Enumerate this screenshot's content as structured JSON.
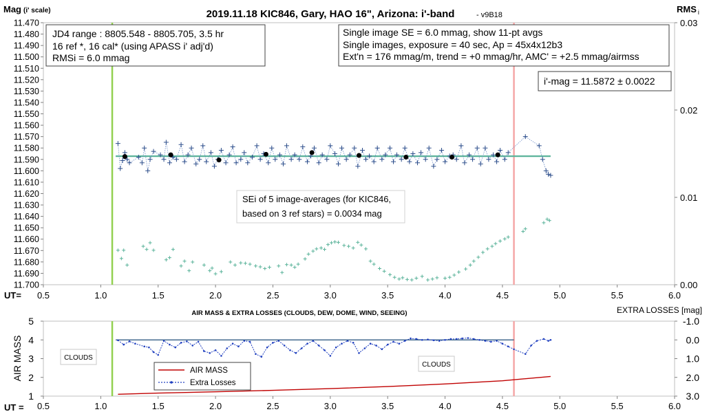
{
  "chart_data": [
    {
      "type": "scatter",
      "title": "2019.11.18 KIC846, Gary, HAO 16\", Arizona: i'-band",
      "version": "- v9B18",
      "ylabel": "Mag",
      "ylabel_scale": "(i' scale)",
      "y2label": "RMS",
      "y2label_sub": "i",
      "xlabel": "UT=",
      "xlim": [
        0.5,
        6.0
      ],
      "ylim": [
        11.47,
        11.7
      ],
      "y_inverted": true,
      "y2lim": [
        0.0,
        0.03
      ],
      "x_ticks": [
        "0.5",
        "1.0",
        "1.5",
        "2.0",
        "2.5",
        "3.0",
        "3.5",
        "4.0",
        "4.5",
        "5.0",
        "5.5",
        "6.0"
      ],
      "y_ticks": [
        "11.470",
        "11.480",
        "11.490",
        "11.500",
        "11.510",
        "11.520",
        "11.530",
        "11.540",
        "11.550",
        "11.560",
        "11.570",
        "11.580",
        "11.590",
        "11.600",
        "11.610",
        "11.620",
        "11.630",
        "11.640",
        "11.650",
        "11.660",
        "11.670",
        "11.680",
        "11.690",
        "11.700"
      ],
      "y2_ticks": [
        "0.03",
        "0.02",
        "0.01",
        "0.00"
      ],
      "vlines": [
        {
          "x": 1.1,
          "color": "#92d050"
        },
        {
          "x": 4.6,
          "color": "#f4a6a6"
        }
      ],
      "hline": {
        "y": 11.5872,
        "x_from": 1.13,
        "x_to": 4.92,
        "color": "#5ab39a"
      },
      "series": [
        {
          "name": "",
          "kind": "single-images",
          "color": "#2c4d8a",
          "x": [
            1.15,
            1.17,
            1.19,
            1.21,
            1.23,
            1.25,
            1.33,
            1.36,
            1.38,
            1.41,
            1.43,
            1.46,
            1.52,
            1.55,
            1.57,
            1.6,
            1.63,
            1.66,
            1.7,
            1.73,
            1.76,
            1.79,
            1.83,
            1.86,
            1.89,
            1.92,
            1.96,
            1.99,
            2.02,
            2.05,
            2.09,
            2.12,
            2.15,
            2.18,
            2.22,
            2.25,
            2.28,
            2.32,
            2.36,
            2.39,
            2.42,
            2.46,
            2.49,
            2.52,
            2.56,
            2.59,
            2.62,
            2.66,
            2.69,
            2.73,
            2.76,
            2.8,
            2.83,
            2.86,
            2.9,
            2.93,
            2.97,
            3.0,
            3.04,
            3.07,
            3.1,
            3.14,
            3.17,
            3.21,
            3.24,
            3.28,
            3.31,
            3.34,
            3.38,
            3.41,
            3.45,
            3.48,
            3.52,
            3.55,
            3.58,
            3.62,
            3.65,
            3.69,
            3.72,
            3.76,
            3.79,
            3.83,
            3.86,
            3.9,
            3.93,
            3.97,
            4.0,
            4.04,
            4.07,
            4.1,
            4.14,
            4.17,
            4.21,
            4.24,
            4.28,
            4.31,
            4.35,
            4.38,
            4.42,
            4.45,
            4.48,
            4.52,
            4.55,
            4.7,
            4.82,
            4.85,
            4.88,
            4.9,
            4.92
          ],
          "y": [
            11.576,
            11.598,
            11.591,
            11.584,
            11.59,
            11.593,
            11.588,
            11.593,
            11.58,
            11.6,
            11.59,
            11.583,
            11.586,
            11.59,
            11.575,
            11.593,
            11.588,
            11.59,
            11.577,
            11.592,
            11.586,
            11.58,
            11.594,
            11.59,
            11.578,
            11.592,
            11.584,
            11.596,
            11.59,
            11.582,
            11.593,
            11.586,
            11.579,
            11.593,
            11.59,
            11.584,
            11.593,
            11.588,
            11.578,
            11.59,
            11.585,
            11.593,
            11.58,
            11.59,
            11.586,
            11.594,
            11.578,
            11.59,
            11.586,
            11.59,
            11.579,
            11.592,
            11.587,
            11.58,
            11.593,
            11.586,
            11.59,
            11.578,
            11.585,
            11.594,
            11.58,
            11.59,
            11.586,
            11.58,
            11.596,
            11.582,
            11.59,
            11.587,
            11.592,
            11.58,
            11.59,
            11.586,
            11.58,
            11.592,
            11.586,
            11.59,
            11.58,
            11.592,
            11.585,
            11.593,
            11.584,
            11.59,
            11.58,
            11.596,
            11.59,
            11.582,
            11.592,
            11.587,
            11.586,
            11.59,
            11.578,
            11.593,
            11.586,
            11.59,
            11.58,
            11.594,
            11.58,
            11.59,
            11.586,
            11.592,
            11.582,
            11.59,
            11.584,
            11.57,
            11.578,
            11.59,
            11.6,
            11.603,
            11.604
          ]
        },
        {
          "name": "",
          "kind": "11-pt-averages",
          "color": "#000000",
          "x": [
            1.21,
            1.61,
            2.03,
            2.44,
            2.84,
            3.25,
            3.66,
            4.06,
            4.46
          ],
          "y": [
            11.5875,
            11.586,
            11.5905,
            11.5855,
            11.584,
            11.5865,
            11.588,
            11.588,
            11.586
          ]
        },
        {
          "name": "",
          "kind": "rms",
          "color": "#5ab39a",
          "axis": "y2",
          "x": [
            1.15,
            1.18,
            1.2,
            1.23,
            1.37,
            1.4,
            1.43,
            1.46,
            1.57,
            1.6,
            1.63,
            1.7,
            1.73,
            1.77,
            1.8,
            1.9,
            1.95,
            1.97,
            2.0,
            2.05,
            2.13,
            2.17,
            2.22,
            2.26,
            2.3,
            2.35,
            2.39,
            2.43,
            2.47,
            2.55,
            2.58,
            2.62,
            2.66,
            2.69,
            2.72,
            2.78,
            2.81,
            2.85,
            2.88,
            2.92,
            2.95,
            2.98,
            3.01,
            3.04,
            3.07,
            3.12,
            3.16,
            3.2,
            3.24,
            3.27,
            3.31,
            3.35,
            3.38,
            3.43,
            3.47,
            3.52,
            3.56,
            3.6,
            3.63,
            3.67,
            3.71,
            3.75,
            3.8,
            3.85,
            3.89,
            3.93,
            4.0,
            4.04,
            4.08,
            4.12,
            4.18,
            4.22,
            4.25,
            4.29,
            4.33,
            4.37,
            4.41,
            4.44,
            4.48,
            4.52,
            4.55,
            4.68,
            4.7,
            4.86,
            4.89,
            4.91
          ],
          "y": [
            0.00395,
            0.003,
            0.00395,
            0.00225,
            0.0044,
            0.00405,
            0.0048,
            0.00395,
            0.00285,
            0.0031,
            0.00405,
            0.00215,
            0.0027,
            0.0016,
            0.0026,
            0.00225,
            0.0016,
            0.0019,
            0.00125,
            0.0015,
            0.0026,
            0.00225,
            0.0025,
            0.00245,
            0.00235,
            0.00215,
            0.00205,
            0.00185,
            0.002,
            0.00215,
            0.0014,
            0.0023,
            0.00225,
            0.002,
            0.00235,
            0.00295,
            0.0035,
            0.00385,
            0.0041,
            0.0042,
            0.00405,
            0.0046,
            0.0048,
            0.0049,
            0.00485,
            0.0045,
            0.0044,
            0.0042,
            0.00485,
            0.00455,
            0.0041,
            0.0027,
            0.00235,
            0.00185,
            0.00155,
            0.00115,
            0.00085,
            0.00065,
            0.0008,
            0.0006,
            0.00055,
            0.00075,
            0.00095,
            0.00055,
            0.00065,
            0.0008,
            0.00075,
            0.00085,
            0.0011,
            0.00145,
            0.0018,
            0.00225,
            0.0027,
            0.00315,
            0.0037,
            0.0041,
            0.0044,
            0.0047,
            0.005,
            0.00525,
            0.00545,
            0.0061,
            0.0064,
            0.0071,
            0.0075,
            0.00735
          ]
        }
      ],
      "annotations": {
        "top_left": [
          "JD4 range : 8805.548 - 8805.705, 3.5  hr",
          "16 ref *, 16 cal* (using APASS i' adj'd)",
          "RMSi = 6.0 mmag"
        ],
        "top_right": [
          "Single image SE = 6.0 mmag, show 11-pt avgs",
          "Single images, exposure = 40 sec, Ap = 45x4x12b3",
          "Ext'n = 176 mmag/m, trend = +0 mmag/hr, AMC' = +2.5 mmag/airmss"
        ],
        "imag": "i'-mag = 11.5872 ± 0.0022",
        "sei": [
          "SEi of 5 image-averages (for KIC846,",
          "based on 3 ref stars) = 0.0034 mag"
        ]
      }
    },
    {
      "type": "line",
      "title": "AIR MASS & EXTRA LOSSES (CLOUDS, DEW, DOME, WIND, SEEING)",
      "ylabel": "AIR MASS",
      "y2label": "EXTRA LOSSES [mag]",
      "xlabel": "UT =",
      "xlim": [
        0.5,
        6.0
      ],
      "ylim": [
        1,
        5
      ],
      "y2lim": [
        -1.0,
        3.0
      ],
      "y2_inverted": true,
      "x_ticks": [
        "0.5",
        "1.0",
        "1.5",
        "2.0",
        "2.5",
        "3.0",
        "3.5",
        "4.0",
        "4.5",
        "5.0",
        "5.5",
        "6.0"
      ],
      "y_ticks": [
        "5",
        "4",
        "3",
        "2",
        "1"
      ],
      "y2_ticks": [
        "-1.0",
        "0.0",
        "1.0",
        "2.0",
        "3.0"
      ],
      "vlines": [
        {
          "x": 1.1,
          "color": "#92d050"
        },
        {
          "x": 4.6,
          "color": "#f4a6a6"
        }
      ],
      "hline": {
        "y": 4.0,
        "x_from": 1.13,
        "x_to": 4.6,
        "color": "#1f4e79"
      },
      "legend": "center-left",
      "labels": [
        "CLOUDS",
        "CLOUDS"
      ],
      "series": [
        {
          "name": "AIR MASS",
          "color": "#c00000",
          "x": [
            1.15,
            1.5,
            2.0,
            2.5,
            3.0,
            3.5,
            4.0,
            4.5,
            4.92
          ],
          "y": [
            1.1,
            1.16,
            1.23,
            1.31,
            1.4,
            1.51,
            1.65,
            1.82,
            2.05
          ]
        },
        {
          "name": "Extra Losses",
          "color": "#1f3fbf",
          "axis": "y2",
          "x": [
            1.15,
            1.2,
            1.25,
            1.3,
            1.38,
            1.42,
            1.46,
            1.5,
            1.55,
            1.6,
            1.65,
            1.7,
            1.75,
            1.8,
            1.85,
            1.9,
            1.95,
            2.0,
            2.05,
            2.1,
            2.15,
            2.2,
            2.25,
            2.3,
            2.35,
            2.4,
            2.45,
            2.5,
            2.55,
            2.6,
            2.65,
            2.7,
            2.75,
            2.8,
            2.85,
            2.9,
            2.95,
            3.0,
            3.05,
            3.1,
            3.15,
            3.2,
            3.25,
            3.3,
            3.35,
            3.4,
            3.45,
            3.5,
            3.55,
            3.6,
            3.65,
            3.7,
            3.75,
            3.8,
            3.85,
            3.9,
            3.95,
            4.0,
            4.05,
            4.1,
            4.15,
            4.2,
            4.25,
            4.3,
            4.35,
            4.4,
            4.45,
            4.5,
            4.55,
            4.6,
            4.7,
            4.75,
            4.8,
            4.86,
            4.9,
            4.92
          ],
          "y": [
            0.02,
            0.25,
            0.08,
            0.2,
            0.35,
            0.4,
            0.65,
            0.8,
            0.05,
            0.25,
            0.4,
            0.15,
            0.08,
            0.3,
            0.1,
            0.6,
            0.7,
            0.55,
            0.85,
            0.45,
            0.2,
            0.35,
            0.05,
            0.1,
            0.75,
            0.9,
            0.4,
            0.15,
            0.05,
            0.3,
            0.55,
            0.7,
            0.45,
            0.2,
            0.05,
            0.3,
            0.55,
            0.85,
            0.4,
            0.2,
            0.05,
            0.15,
            0.7,
            0.45,
            0.2,
            0.3,
            0.5,
            0.25,
            0.1,
            0.2,
            0.05,
            -0.08,
            -0.05,
            0.0,
            -0.02,
            0.02,
            0.05,
            0.0,
            -0.05,
            -0.05,
            -0.08,
            -0.1,
            -0.05,
            0.0,
            0.05,
            0.1,
            0.05,
            0.2,
            0.35,
            0.5,
            0.75,
            0.3,
            0.05,
            -0.05,
            0.05,
            0.0
          ]
        }
      ]
    }
  ]
}
